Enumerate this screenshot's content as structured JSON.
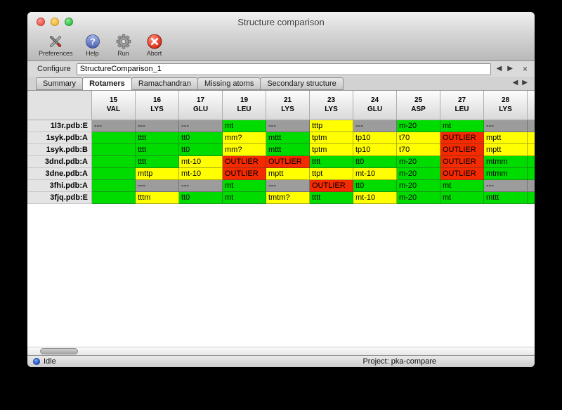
{
  "window": {
    "title": "Structure comparison"
  },
  "toolbar": {
    "items": [
      {
        "label": "Preferences",
        "icon": "tools-icon"
      },
      {
        "label": "Help",
        "icon": "help-icon"
      },
      {
        "label": "Run",
        "icon": "gear-icon"
      },
      {
        "label": "Abort",
        "icon": "abort-icon"
      }
    ]
  },
  "configure": {
    "label": "Configure",
    "value": "StructureComparison_1"
  },
  "tabs": {
    "items": [
      "Summary",
      "Rotamers",
      "Ramachandran",
      "Missing atoms",
      "Secondary structure"
    ],
    "active": "Rotamers"
  },
  "icons": {
    "prev": "◀",
    "next": "▶",
    "close": "×"
  },
  "colors": {
    "green": "#00dc00",
    "yellow": "#ffff00",
    "red": "#f42a00",
    "gray": "#9c9c9c"
  },
  "table": {
    "columns": [
      {
        "num": "15",
        "res": "VAL"
      },
      {
        "num": "16",
        "res": "LYS"
      },
      {
        "num": "17",
        "res": "GLU"
      },
      {
        "num": "19",
        "res": "LEU"
      },
      {
        "num": "21",
        "res": "LYS"
      },
      {
        "num": "23",
        "res": "LYS"
      },
      {
        "num": "24",
        "res": "GLU"
      },
      {
        "num": "25",
        "res": "ASP"
      },
      {
        "num": "27",
        "res": "LEU"
      },
      {
        "num": "28",
        "res": "LYS"
      },
      {
        "num": "",
        "res": ""
      }
    ],
    "rows": [
      {
        "name": "1l3r.pdb:E",
        "cells": [
          {
            "text": "---",
            "color": "gray"
          },
          {
            "text": "---",
            "color": "gray"
          },
          {
            "text": "---",
            "color": "gray"
          },
          {
            "text": "mt",
            "color": "green"
          },
          {
            "text": "---",
            "color": "gray"
          },
          {
            "text": "tttp",
            "color": "yellow"
          },
          {
            "text": "---",
            "color": "gray"
          },
          {
            "text": "m-20",
            "color": "green"
          },
          {
            "text": "mt",
            "color": "green"
          },
          {
            "text": "---",
            "color": "gray"
          },
          {
            "text": "",
            "color": "gray"
          }
        ]
      },
      {
        "name": "1syk.pdb:A",
        "cells": [
          {
            "text": "",
            "color": "green"
          },
          {
            "text": "tttt",
            "color": "green"
          },
          {
            "text": "tt0",
            "color": "green"
          },
          {
            "text": "mm?",
            "color": "yellow"
          },
          {
            "text": "mttt",
            "color": "green"
          },
          {
            "text": "tptm",
            "color": "yellow"
          },
          {
            "text": "tp10",
            "color": "yellow"
          },
          {
            "text": "t70",
            "color": "yellow"
          },
          {
            "text": "OUTLIER",
            "color": "red"
          },
          {
            "text": "mptt",
            "color": "yellow"
          },
          {
            "text": "",
            "color": "yellow"
          }
        ]
      },
      {
        "name": "1syk.pdb:B",
        "cells": [
          {
            "text": "",
            "color": "green"
          },
          {
            "text": "tttt",
            "color": "green"
          },
          {
            "text": "tt0",
            "color": "green"
          },
          {
            "text": "mm?",
            "color": "yellow"
          },
          {
            "text": "mttt",
            "color": "green"
          },
          {
            "text": "tptm",
            "color": "yellow"
          },
          {
            "text": "tp10",
            "color": "yellow"
          },
          {
            "text": "t70",
            "color": "yellow"
          },
          {
            "text": "OUTLIER",
            "color": "red"
          },
          {
            "text": "mptt",
            "color": "yellow"
          },
          {
            "text": "",
            "color": "yellow"
          }
        ]
      },
      {
        "name": "3dnd.pdb:A",
        "cells": [
          {
            "text": "",
            "color": "green"
          },
          {
            "text": "tttt",
            "color": "green"
          },
          {
            "text": "mt-10",
            "color": "yellow"
          },
          {
            "text": "OUTLIER",
            "color": "red"
          },
          {
            "text": "OUTLIER",
            "color": "red"
          },
          {
            "text": "tttt",
            "color": "green"
          },
          {
            "text": "tt0",
            "color": "green"
          },
          {
            "text": "m-20",
            "color": "green"
          },
          {
            "text": "OUTLIER",
            "color": "red"
          },
          {
            "text": "mtmm",
            "color": "green"
          },
          {
            "text": "",
            "color": "green"
          }
        ]
      },
      {
        "name": "3dne.pdb:A",
        "cells": [
          {
            "text": "",
            "color": "green"
          },
          {
            "text": "mttp",
            "color": "yellow"
          },
          {
            "text": "mt-10",
            "color": "yellow"
          },
          {
            "text": "OUTLIER",
            "color": "red"
          },
          {
            "text": "mptt",
            "color": "yellow"
          },
          {
            "text": "ttpt",
            "color": "yellow"
          },
          {
            "text": "mt-10",
            "color": "yellow"
          },
          {
            "text": "m-20",
            "color": "green"
          },
          {
            "text": "OUTLIER",
            "color": "red"
          },
          {
            "text": "mtmm",
            "color": "green"
          },
          {
            "text": "",
            "color": "green"
          }
        ]
      },
      {
        "name": "3fhi.pdb:A",
        "cells": [
          {
            "text": "",
            "color": "green"
          },
          {
            "text": "---",
            "color": "gray"
          },
          {
            "text": "---",
            "color": "gray"
          },
          {
            "text": "mt",
            "color": "green"
          },
          {
            "text": "---",
            "color": "gray"
          },
          {
            "text": "OUTLIER",
            "color": "red"
          },
          {
            "text": "tt0",
            "color": "green"
          },
          {
            "text": "m-20",
            "color": "green"
          },
          {
            "text": "mt",
            "color": "green"
          },
          {
            "text": "---",
            "color": "gray"
          },
          {
            "text": "",
            "color": "gray"
          }
        ]
      },
      {
        "name": "3fjq.pdb:E",
        "cells": [
          {
            "text": "",
            "color": "green"
          },
          {
            "text": "tttm",
            "color": "yellow"
          },
          {
            "text": "tt0",
            "color": "green"
          },
          {
            "text": "mt",
            "color": "green"
          },
          {
            "text": "tmtm?",
            "color": "yellow"
          },
          {
            "text": "tttt",
            "color": "green"
          },
          {
            "text": "mt-10",
            "color": "yellow"
          },
          {
            "text": "m-20",
            "color": "green"
          },
          {
            "text": "mt",
            "color": "green"
          },
          {
            "text": "mttt",
            "color": "green"
          },
          {
            "text": "",
            "color": "green"
          }
        ]
      }
    ]
  },
  "status": {
    "state": "Idle",
    "project": "Project: pka-compare"
  }
}
